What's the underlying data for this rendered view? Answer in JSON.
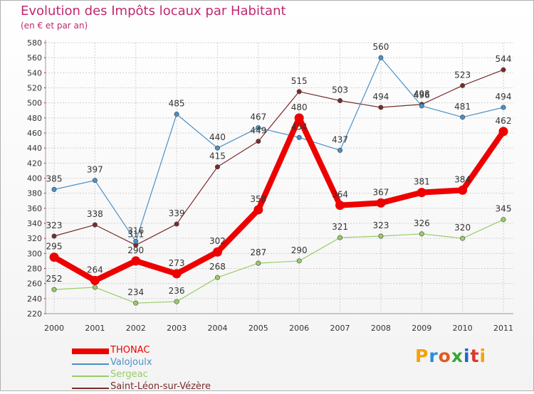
{
  "title": "Evolution des Impôts locaux par Habitant",
  "subtitle": "(en € et par an)",
  "logo": {
    "letters": [
      "P",
      "r",
      "o",
      "x",
      "i",
      "t",
      "i"
    ],
    "colors": [
      "#f5a300",
      "#2a8fd6",
      "#e35b1c",
      "#3aa53a",
      "#1f67c4",
      "#d9392b",
      "#f5a300"
    ]
  },
  "chart_data": {
    "type": "line",
    "title": "Evolution des Impôts locaux par Habitant",
    "ylabel": "(en € et par an)",
    "xlabel": "",
    "x": [
      "2000",
      "2001",
      "2002",
      "2003",
      "2004",
      "2005",
      "2006",
      "2007",
      "2008",
      "2009",
      "2010",
      "2011"
    ],
    "yticks": [
      220,
      240,
      260,
      280,
      300,
      320,
      340,
      360,
      380,
      400,
      420,
      440,
      460,
      480,
      500,
      520,
      540,
      560,
      580
    ],
    "ylim": [
      220,
      580
    ],
    "series": [
      {
        "name": "Sergeac",
        "color": "#99cc66",
        "values": [
          252,
          255,
          234,
          236,
          268,
          287,
          290,
          321,
          323,
          326,
          320,
          345
        ],
        "labels": [
          "252",
          "",
          "234",
          "236",
          "268",
          "287",
          "290",
          "321",
          "323",
          "326",
          "320",
          "345"
        ]
      },
      {
        "name": "Saint-Léon-sur-Vézère",
        "color": "#7a2b2b",
        "values": [
          323,
          338,
          311,
          339,
          415,
          449,
          515,
          503,
          494,
          498,
          523,
          544
        ],
        "labels": [
          "323",
          "338",
          "311",
          "339",
          "415",
          "449",
          "515",
          "503",
          "494",
          "498",
          "523",
          "544"
        ]
      },
      {
        "name": "Valojoulx",
        "color": "#4a90c8",
        "values": [
          385,
          397,
          316,
          485,
          440,
          467,
          454,
          437,
          560,
          496,
          481,
          494
        ],
        "labels": [
          "385",
          "397",
          "316",
          "485",
          "440",
          "467",
          "454",
          "437",
          "560",
          "496",
          "481",
          "494"
        ]
      },
      {
        "name": "THONAC",
        "color": "#ee0000",
        "values": [
          295,
          264,
          290,
          273,
          302,
          358,
          480,
          364,
          367,
          381,
          384,
          462
        ],
        "labels": [
          "295",
          "264",
          "290",
          "273",
          "302",
          "358",
          "480",
          "364",
          "367",
          "381",
          "384",
          "462"
        ]
      }
    ],
    "legend": [
      "THONAC",
      "Valojoulx",
      "Sergeac",
      "Saint-Léon-sur-Vézère"
    ],
    "grid": true,
    "legend_position": "bottom-left"
  }
}
